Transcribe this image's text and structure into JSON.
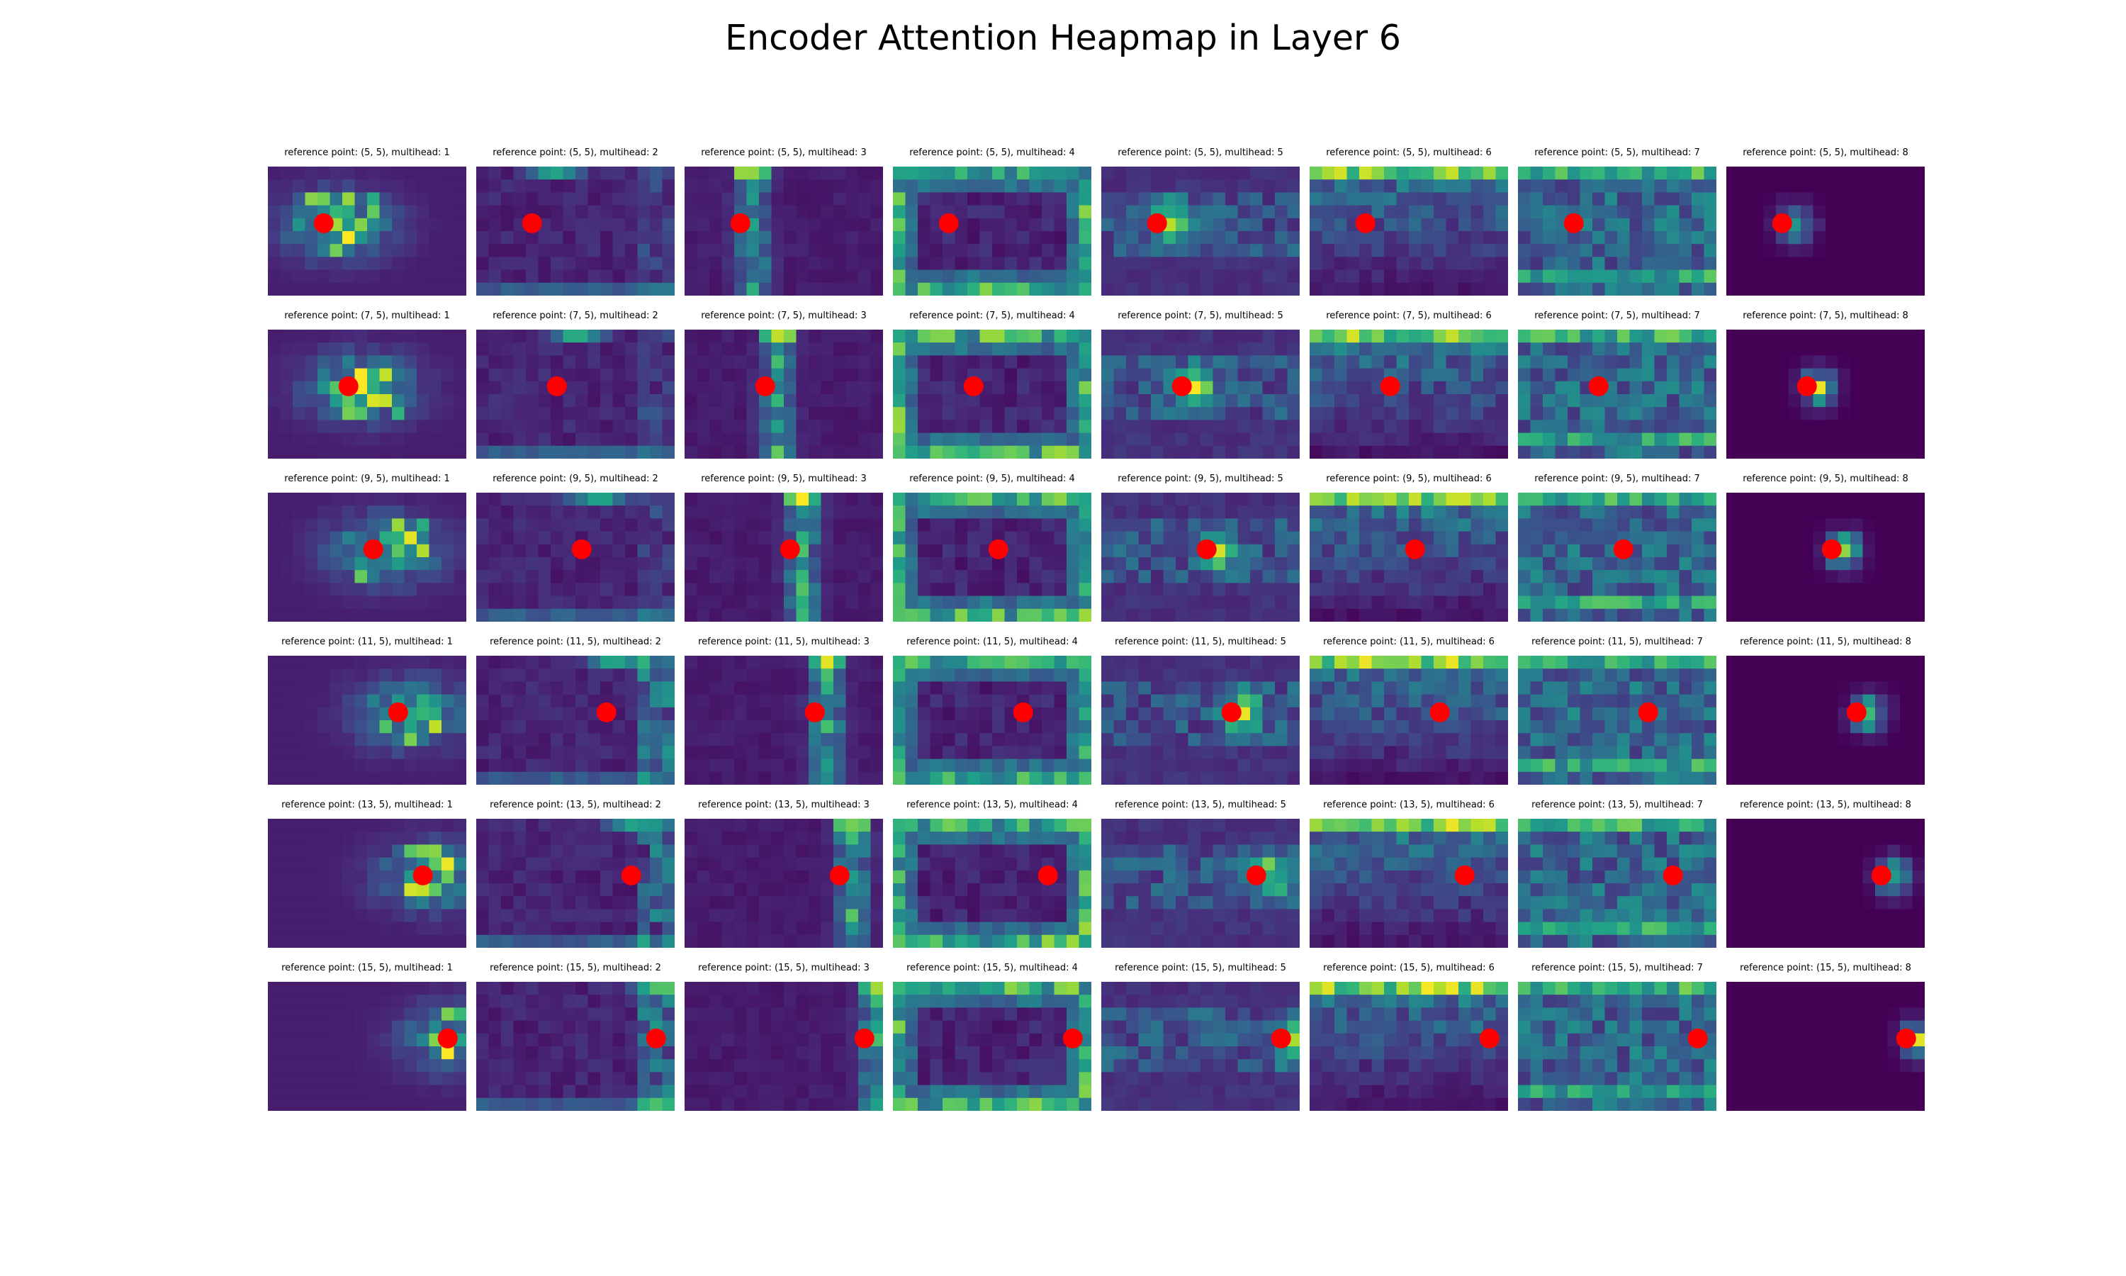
{
  "figure": {
    "title": "Encoder Attention Heapmap in Layer 6"
  },
  "chart_data": {
    "type": "heatmap",
    "title": "Encoder Attention Heapmap in Layer 6",
    "layout": {
      "rows": 6,
      "cols": 8
    },
    "heatmap_grid": {
      "cols": 16,
      "rows": 10
    },
    "colormap": "viridis",
    "marker_color": "#ff0000",
    "axes_visible": false,
    "grid": false,
    "rows": [
      {
        "reference_point": [
          5,
          5
        ]
      },
      {
        "reference_point": [
          7,
          5
        ]
      },
      {
        "reference_point": [
          9,
          5
        ]
      },
      {
        "reference_point": [
          11,
          5
        ]
      },
      {
        "reference_point": [
          13,
          5
        ]
      },
      {
        "reference_point": [
          15,
          5
        ]
      }
    ],
    "multiheads": [
      1,
      2,
      3,
      4,
      5,
      6,
      7,
      8
    ],
    "panel_titles": [
      [
        "reference point: (5, 5), multihead: 1",
        "reference point: (5, 5), multihead: 2",
        "reference point: (5, 5), multihead: 3",
        "reference point: (5, 5), multihead: 4",
        "reference point: (5, 5), multihead: 5",
        "reference point: (5, 5), multihead: 6",
        "reference point: (5, 5), multihead: 7",
        "reference point: (5, 5), multihead: 8"
      ],
      [
        "reference point: (7, 5), multihead: 1",
        "reference point: (7, 5), multihead: 2",
        "reference point: (7, 5), multihead: 3",
        "reference point: (7, 5), multihead: 4",
        "reference point: (7, 5), multihead: 5",
        "reference point: (7, 5), multihead: 6",
        "reference point: (7, 5), multihead: 7",
        "reference point: (7, 5), multihead: 8"
      ],
      [
        "reference point: (9, 5), multihead: 1",
        "reference point: (9, 5), multihead: 2",
        "reference point: (9, 5), multihead: 3",
        "reference point: (9, 5), multihead: 4",
        "reference point: (9, 5), multihead: 5",
        "reference point: (9, 5), multihead: 6",
        "reference point: (9, 5), multihead: 7",
        "reference point: (9, 5), multihead: 8"
      ],
      [
        "reference point: (11, 5), multihead: 1",
        "reference point: (11, 5), multihead: 2",
        "reference point: (11, 5), multihead: 3",
        "reference point: (11, 5), multihead: 4",
        "reference point: (11, 5), multihead: 5",
        "reference point: (11, 5), multihead: 6",
        "reference point: (11, 5), multihead: 7",
        "reference point: (11, 5), multihead: 8"
      ],
      [
        "reference point: (13, 5), multihead: 1",
        "reference point: (13, 5), multihead: 2",
        "reference point: (13, 5), multihead: 3",
        "reference point: (13, 5), multihead: 4",
        "reference point: (13, 5), multihead: 5",
        "reference point: (13, 5), multihead: 6",
        "reference point: (13, 5), multihead: 7",
        "reference point: (13, 5), multihead: 8"
      ],
      [
        "reference point: (15, 5), multihead: 1",
        "reference point: (15, 5), multihead: 2",
        "reference point: (15, 5), multihead: 3",
        "reference point: (15, 5), multihead: 4",
        "reference point: (15, 5), multihead: 5",
        "reference point: (15, 5), multihead: 6",
        "reference point: (15, 5), multihead: 7",
        "reference point: (15, 5), multihead: 8"
      ]
    ]
  }
}
